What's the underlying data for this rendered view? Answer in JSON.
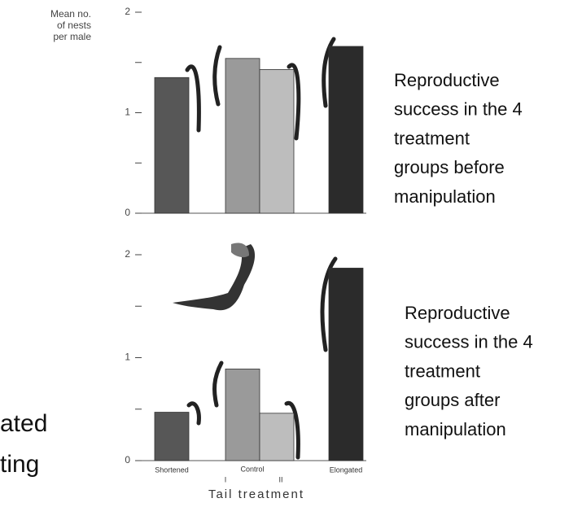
{
  "chart_data": [
    {
      "type": "bar",
      "ylabel": [
        "Mean no.",
        "of nests",
        "per male"
      ],
      "categories": [
        null,
        null,
        null,
        null
      ],
      "values": [
        1.35,
        1.54,
        1.43,
        1.66
      ],
      "colors": [
        "#575757",
        "#9a9a9a",
        "#bdbdbd",
        "#2b2b2b"
      ],
      "ylim": [
        0,
        2
      ],
      "yticks": [
        0,
        1,
        2
      ],
      "minor_yticks": [
        0.5,
        1.5
      ],
      "annotation": [
        "Reproductive",
        "success in the 4",
        "treatment",
        "groups before",
        "manipulation"
      ]
    },
    {
      "type": "bar",
      "categories": [
        "Shortened",
        "I",
        "II",
        "Elongated"
      ],
      "group_label": "Control",
      "xlabel": "Tail treatment",
      "values": [
        0.47,
        0.89,
        0.46,
        1.87
      ],
      "colors": [
        "#575757",
        "#9a9a9a",
        "#bdbdbd",
        "#2b2b2b"
      ],
      "ylim": [
        0,
        2
      ],
      "yticks": [
        0,
        1,
        2
      ],
      "minor_yticks": [
        0.5,
        1.5
      ],
      "annotation": [
        "Reproductive",
        "success in the 4",
        "treatment",
        "groups after",
        "manipulation"
      ]
    }
  ],
  "slide_text_fragments": [
    "ated",
    "ting"
  ]
}
